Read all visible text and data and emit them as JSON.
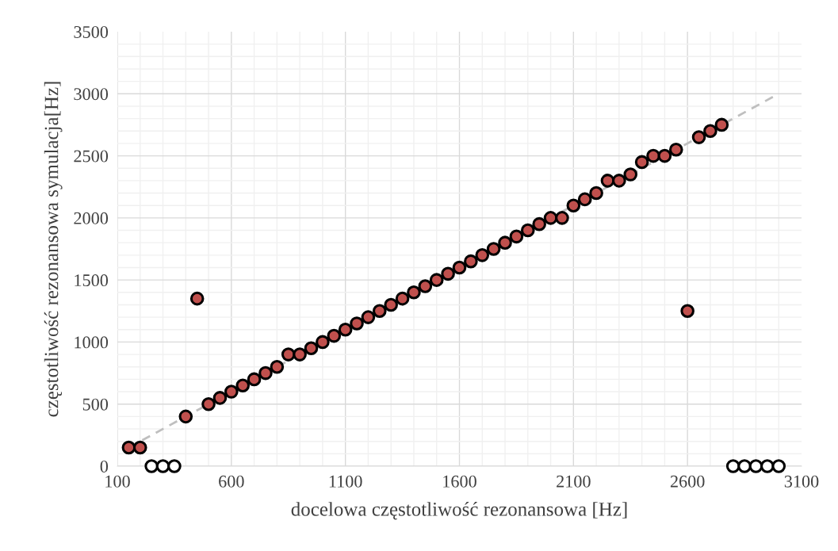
{
  "chart_data": {
    "type": "scatter",
    "xlabel": "docelowa częstotliwość rezonansowa [Hz]",
    "ylabel": "częstotliwość rezonansowa symulacja[Hz]",
    "xlim": [
      100,
      3100
    ],
    "xticks": [
      100,
      600,
      1100,
      1600,
      2100,
      2600,
      3100
    ],
    "ylim": [
      0,
      3500
    ],
    "yticks": [
      0,
      500,
      1000,
      1500,
      2000,
      2500,
      3000,
      3500
    ],
    "grid": true,
    "marker": "circle",
    "series": [
      {
        "type": "line",
        "color": "#bfbfbf",
        "line_style": "dashed",
        "marker": "none",
        "x": [
          150,
          3000
        ],
        "values": [
          150,
          3000
        ]
      },
      {
        "color": "#c0504d",
        "x": [
          150,
          200,
          400,
          450,
          500,
          550,
          600,
          650,
          700,
          750,
          800,
          850,
          900,
          950,
          1000,
          1050,
          1100,
          1150,
          1200,
          1250,
          1300,
          1350,
          1400,
          1450,
          1500,
          1550,
          1600,
          1650,
          1700,
          1750,
          1800,
          1850,
          1900,
          1950,
          2000,
          2050,
          2100,
          2150,
          2200,
          2250,
          2300,
          2350,
          2400,
          2450,
          2500,
          2550,
          2600,
          2650,
          2700,
          2750
        ],
        "values": [
          150,
          150,
          400,
          1350,
          500,
          550,
          600,
          650,
          700,
          750,
          800,
          900,
          900,
          950,
          1000,
          1050,
          1100,
          1150,
          1200,
          1250,
          1300,
          1350,
          1400,
          1450,
          1500,
          1550,
          1600,
          1650,
          1700,
          1750,
          1800,
          1850,
          1900,
          1950,
          2000,
          2000,
          2100,
          2150,
          2200,
          2300,
          2300,
          2350,
          2450,
          2500,
          2500,
          2550,
          1250,
          2650,
          2700,
          2750
        ]
      },
      {
        "color": "#ffffff",
        "x": [
          250,
          300,
          350,
          2800,
          2850,
          2900,
          2950,
          3000
        ],
        "values": [
          0,
          0,
          0,
          0,
          0,
          0,
          0,
          0
        ]
      }
    ]
  }
}
